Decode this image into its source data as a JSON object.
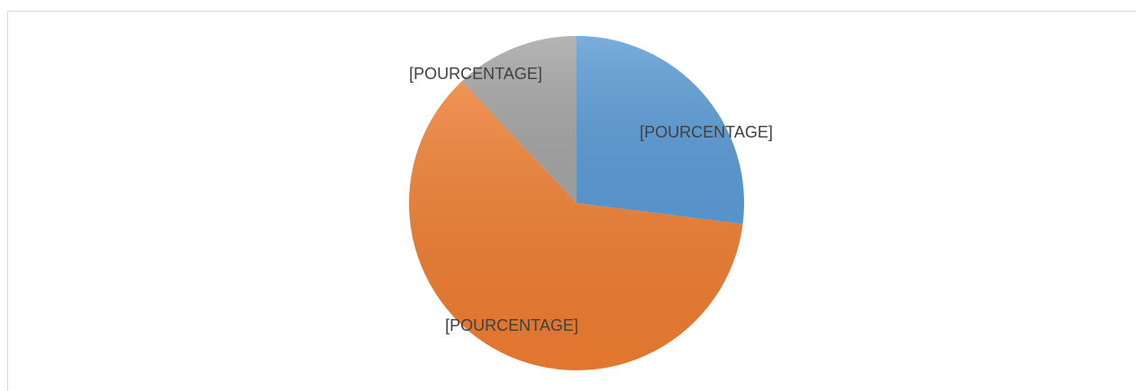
{
  "chart_data": {
    "type": "pie",
    "values": [
      27,
      61,
      12
    ],
    "colors": [
      "#5b9bd5",
      "#ed7d31",
      "#a5a5a5"
    ],
    "data_labels": [
      "[POURCENTAGE]",
      "[POURCENTAGE]",
      "[POURCENTAGE]"
    ],
    "start_angle": 0,
    "direction": "clockwise"
  }
}
